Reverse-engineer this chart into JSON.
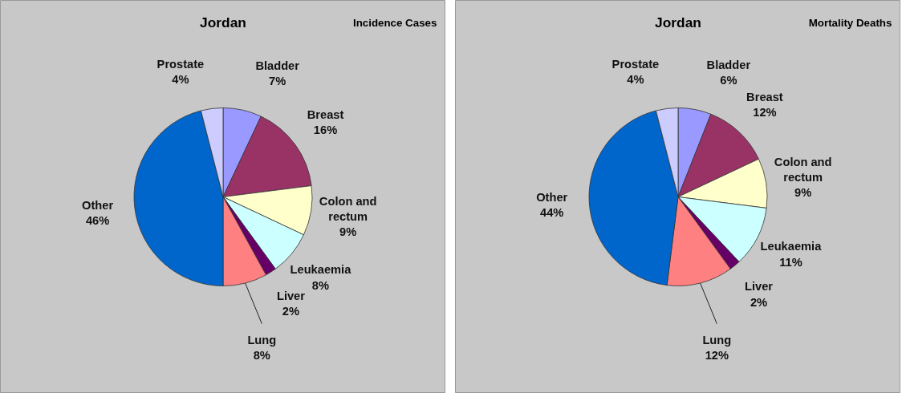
{
  "chart_data": [
    {
      "type": "pie",
      "title": "Jordan",
      "subtitle": "Incidence Cases",
      "categories": [
        "Bladder",
        "Breast",
        "Colon and rectum",
        "Leukaemia",
        "Liver",
        "Lung",
        "Other",
        "Prostate"
      ],
      "values": [
        7,
        16,
        9,
        8,
        2,
        8,
        46,
        4
      ],
      "value_labels": [
        "7%",
        "16%",
        "9%",
        "8%",
        "2%",
        "8%",
        "46%",
        "4%"
      ],
      "colors": [
        "#9999ff",
        "#993366",
        "#ffffcc",
        "#ccffff",
        "#660066",
        "#ff8080",
        "#0066cc",
        "#ccccff"
      ]
    },
    {
      "type": "pie",
      "title": "Jordan",
      "subtitle": "Mortality Deaths",
      "categories": [
        "Bladder",
        "Breast",
        "Colon and rectum",
        "Leukaemia",
        "Liver",
        "Lung",
        "Other",
        "Prostate"
      ],
      "values": [
        6,
        12,
        9,
        11,
        2,
        12,
        44,
        4
      ],
      "value_labels": [
        "6%",
        "12%",
        "9%",
        "11%",
        "2%",
        "12%",
        "44%",
        "4%"
      ],
      "colors": [
        "#9999ff",
        "#993366",
        "#ffffcc",
        "#ccffff",
        "#660066",
        "#ff8080",
        "#0066cc",
        "#ccccff"
      ]
    }
  ]
}
